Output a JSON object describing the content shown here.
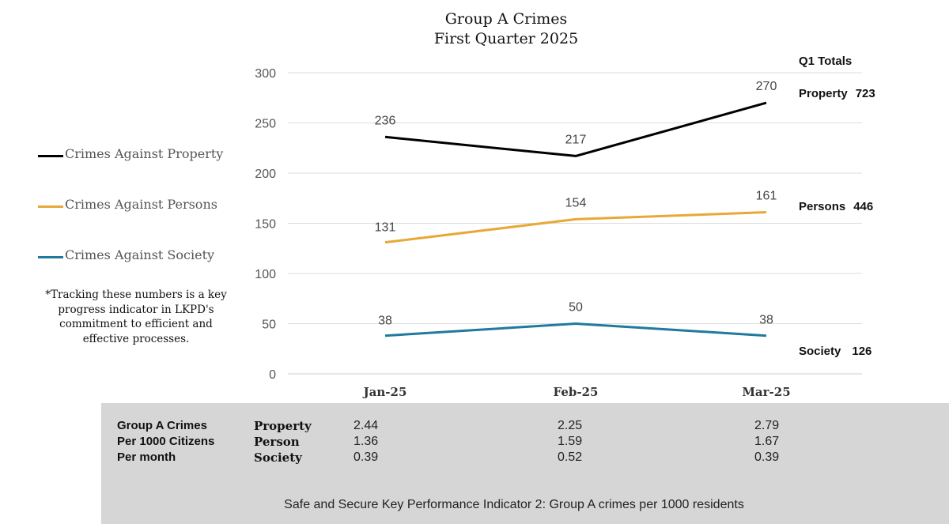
{
  "chart_data": {
    "type": "line",
    "title": "Group A Crimes",
    "subtitle": "First Quarter 2025",
    "categories": [
      "Jan-25",
      "Feb-25",
      "Mar-25"
    ],
    "ylim": [
      0,
      300
    ],
    "yticks": [
      0,
      50,
      100,
      150,
      200,
      250,
      300
    ],
    "grid": true,
    "series": [
      {
        "name": "Crimes Against Property",
        "values": [
          236,
          217,
          270
        ],
        "color": "#000000"
      },
      {
        "name": "Crimes Against Persons",
        "values": [
          131,
          154,
          161
        ],
        "color": "#E8A838"
      },
      {
        "name": "Crimes Against Society",
        "values": [
          38,
          50,
          38
        ],
        "color": "#1F7A9E"
      }
    ]
  },
  "note": "*Tracking these numbers is a key progress indicator in LKPD's commitment to efficient and effective processes.",
  "totals": {
    "header": "Q1 Totals",
    "rows": [
      {
        "label": "Property",
        "value": "723"
      },
      {
        "label": "Persons",
        "value": "446"
      },
      {
        "label": "Society",
        "value": "126"
      }
    ]
  },
  "rate_table": {
    "row_labels": [
      "Group A Crimes",
      "Per 1000 Citizens",
      "Per month"
    ],
    "categories": [
      "Property",
      "Person",
      "Society"
    ],
    "values": [
      [
        "2.44",
        "2.25",
        "2.79"
      ],
      [
        "1.36",
        "1.59",
        "1.67"
      ],
      [
        "0.39",
        "0.52",
        "0.39"
      ]
    ],
    "caption": "Safe and Secure Key Performance Indicator 2:  Group A crimes per 1000 residents"
  }
}
